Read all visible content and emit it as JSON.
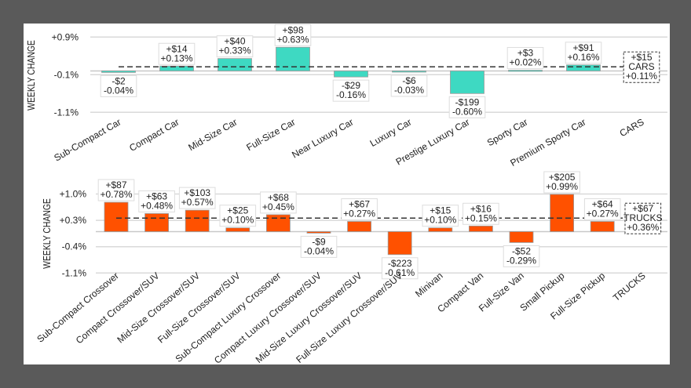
{
  "chart_data": [
    {
      "type": "bar",
      "ylabel": "WEEKLY CHANGE",
      "yticks": [
        "+0.9%",
        "-0.1%",
        "-1.1%"
      ],
      "ytick_values": [
        0.9,
        -0.1,
        -1.1
      ],
      "ylim": [
        -1.1,
        0.9
      ],
      "grid": true,
      "color": "#3ed9c2",
      "categories": [
        "Sub-Compact Car",
        "Compact Car",
        "Mid-Size Car",
        "Full-Size Car",
        "Near Luxury Car",
        "Luxury Car",
        "Prestige Luxury Car",
        "Sporty Car",
        "Premium Sporty Car"
      ],
      "values_pct": [
        -0.04,
        0.13,
        0.33,
        0.63,
        -0.16,
        -0.03,
        -0.6,
        0.02,
        0.16
      ],
      "dollar_labels": [
        "-$2",
        "+$14",
        "+$40",
        "+$98",
        "-$29",
        "-$6",
        "-$199",
        "+$3",
        "+$91"
      ],
      "pct_labels": [
        "-0.04%",
        "+0.13%",
        "+0.33%",
        "+0.63%",
        "-0.16%",
        "-0.03%",
        "-0.60%",
        "+0.02%",
        "+0.16%"
      ],
      "aggregate": {
        "category": "CARS",
        "value_pct": 0.11,
        "dollar": "+$15",
        "name": "CARS",
        "pct": "+0.11%"
      }
    },
    {
      "type": "bar",
      "ylabel": "WEEKLY CHANGE",
      "yticks": [
        "+1.0%",
        "+0.3%",
        "-0.4%",
        "-1.1%"
      ],
      "ytick_values": [
        1.0,
        0.3,
        -0.4,
        -1.1
      ],
      "ylim": [
        -1.1,
        1.0
      ],
      "grid": true,
      "color": "#ff5100",
      "categories": [
        "Sub-Compact Crossover",
        "Compact Crossover/SUV",
        "Mid-Size Crossover/SUV",
        "Full-Size Crossover/SUV",
        "Sub-Compact Luxury Crossover",
        "Compact Luxury Crossover/SUV",
        "Mid-Size Luxury Crossover/SUV",
        "Full-Size Luxury Crossover/SUV",
        "Minivan",
        "Compact Van",
        "Full-Size Van",
        "Small Pickup",
        "Full-Size Pickup"
      ],
      "values_pct": [
        0.78,
        0.48,
        0.57,
        0.1,
        0.45,
        -0.04,
        0.27,
        -0.61,
        0.1,
        0.15,
        -0.29,
        0.99,
        0.27
      ],
      "dollar_labels": [
        "+$87",
        "+$63",
        "+$103",
        "+$25",
        "+$68",
        "-$9",
        "+$67",
        "-$223",
        "+$15",
        "+$16",
        "-$52",
        "+$205",
        "+$64"
      ],
      "pct_labels": [
        "+0.78%",
        "+0.48%",
        "+0.57%",
        "+0.10%",
        "+0.45%",
        "-0.04%",
        "+0.27%",
        "-0.61%",
        "+0.10%",
        "+0.15%",
        "-0.29%",
        "+0.99%",
        "+0.27%"
      ],
      "aggregate": {
        "category": "TRUCKS",
        "value_pct": 0.36,
        "dollar": "+$67",
        "name": "TRUCKS",
        "pct": "+0.36%"
      }
    }
  ]
}
